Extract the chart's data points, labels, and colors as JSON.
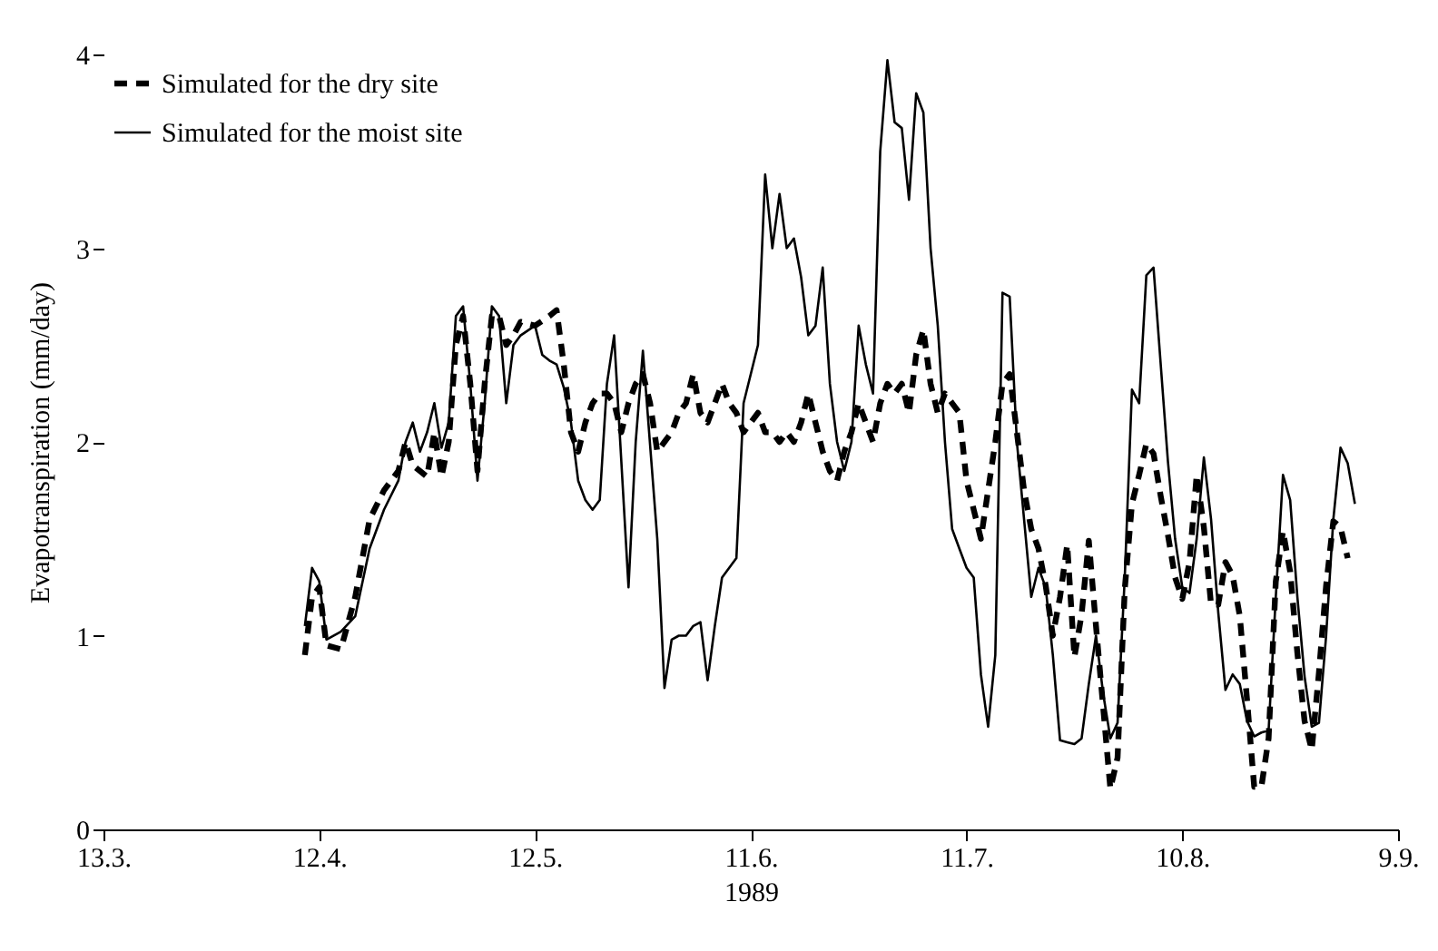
{
  "chart_data": {
    "type": "line",
    "xlabel": "1989",
    "ylabel": "Evapotranspiration (mm/day)",
    "xlim": [
      "1989-03-13",
      "1989-09-09"
    ],
    "xticks": [
      {
        "value": "1989-03-13",
        "label": "13.3."
      },
      {
        "value": "1989-04-12",
        "label": "12.4."
      },
      {
        "value": "1989-05-12",
        "label": "12.5."
      },
      {
        "value": "1989-06-11",
        "label": "11.6."
      },
      {
        "value": "1989-07-11",
        "label": "11.7."
      },
      {
        "value": "1989-08-10",
        "label": "10.8."
      },
      {
        "value": "1989-09-09",
        "label": "9.9."
      }
    ],
    "ylim": [
      0,
      4
    ],
    "yticks": [
      0,
      1,
      2,
      3,
      4
    ],
    "legend": "top left",
    "series": [
      {
        "name": "Simulated for the dry site",
        "color": "#000000",
        "line_style": "dashed",
        "x": [
          "1989-04-10",
          "1989-04-11",
          "1989-04-12",
          "1989-04-13",
          "1989-04-15",
          "1989-04-17",
          "1989-04-19",
          "1989-04-21",
          "1989-04-23",
          "1989-04-24",
          "1989-04-25",
          "1989-04-26",
          "1989-04-27",
          "1989-04-28",
          "1989-04-29",
          "1989-04-30",
          "1989-05-01",
          "1989-05-02",
          "1989-05-03",
          "1989-05-04",
          "1989-05-05",
          "1989-05-06",
          "1989-05-07",
          "1989-05-08",
          "1989-05-09",
          "1989-05-10",
          "1989-05-12",
          "1989-05-14",
          "1989-05-15",
          "1989-05-16",
          "1989-05-17",
          "1989-05-18",
          "1989-05-19",
          "1989-05-20",
          "1989-05-21",
          "1989-05-22",
          "1989-05-23",
          "1989-05-24",
          "1989-05-25",
          "1989-05-26",
          "1989-05-27",
          "1989-05-28",
          "1989-05-29",
          "1989-05-30",
          "1989-05-31",
          "1989-06-01",
          "1989-06-02",
          "1989-06-03",
          "1989-06-04",
          "1989-06-05",
          "1989-06-06",
          "1989-06-07",
          "1989-06-08",
          "1989-06-09",
          "1989-06-10",
          "1989-06-11",
          "1989-06-12",
          "1989-06-13",
          "1989-06-14",
          "1989-06-15",
          "1989-06-16",
          "1989-06-17",
          "1989-06-18",
          "1989-06-19",
          "1989-06-20",
          "1989-06-21",
          "1989-06-22",
          "1989-06-23",
          "1989-06-24",
          "1989-06-25",
          "1989-06-26",
          "1989-06-27",
          "1989-06-28",
          "1989-06-29",
          "1989-06-30",
          "1989-07-01",
          "1989-07-02",
          "1989-07-03",
          "1989-07-04",
          "1989-07-05",
          "1989-07-06",
          "1989-07-07",
          "1989-07-08",
          "1989-07-09",
          "1989-07-10",
          "1989-07-11",
          "1989-07-12",
          "1989-07-13",
          "1989-07-14",
          "1989-07-15",
          "1989-07-16",
          "1989-07-17",
          "1989-07-18",
          "1989-07-19",
          "1989-07-20",
          "1989-07-21",
          "1989-07-22",
          "1989-07-23",
          "1989-07-24",
          "1989-07-25",
          "1989-07-26",
          "1989-07-27",
          "1989-07-28",
          "1989-07-29",
          "1989-07-30",
          "1989-07-31",
          "1989-08-01",
          "1989-08-02",
          "1989-08-03",
          "1989-08-04",
          "1989-08-05",
          "1989-08-06",
          "1989-08-07",
          "1989-08-08",
          "1989-08-09",
          "1989-08-10",
          "1989-08-11",
          "1989-08-12",
          "1989-08-13",
          "1989-08-14",
          "1989-08-15",
          "1989-08-16",
          "1989-08-17",
          "1989-08-18",
          "1989-08-19",
          "1989-08-20",
          "1989-08-21",
          "1989-08-22",
          "1989-08-23",
          "1989-08-24",
          "1989-08-25",
          "1989-08-26",
          "1989-08-27",
          "1989-08-28",
          "1989-08-29",
          "1989-08-30",
          "1989-08-31",
          "1989-09-01",
          "1989-09-02"
        ],
        "values": [
          0.9,
          1.2,
          1.25,
          0.95,
          0.93,
          1.2,
          1.6,
          1.75,
          1.85,
          2.0,
          1.88,
          1.85,
          1.82,
          2.05,
          1.82,
          2.0,
          2.5,
          2.65,
          2.3,
          1.85,
          2.3,
          2.65,
          2.65,
          2.5,
          2.55,
          2.62,
          2.6,
          2.65,
          2.68,
          2.4,
          2.05,
          1.95,
          2.1,
          2.2,
          2.25,
          2.25,
          2.2,
          2.05,
          2.2,
          2.3,
          2.35,
          2.2,
          1.95,
          2.0,
          2.05,
          2.15,
          2.2,
          2.35,
          2.15,
          2.1,
          2.2,
          2.3,
          2.2,
          2.15,
          2.05,
          2.1,
          2.15,
          2.05,
          2.05,
          2.0,
          2.05,
          2.0,
          2.1,
          2.25,
          2.1,
          1.95,
          1.85,
          1.8,
          1.95,
          2.05,
          2.2,
          2.1,
          2.0,
          2.2,
          2.3,
          2.25,
          2.3,
          2.15,
          2.45,
          2.58,
          2.3,
          2.15,
          2.25,
          2.2,
          2.15,
          1.8,
          1.65,
          1.5,
          1.75,
          2.0,
          2.3,
          2.35,
          2.05,
          1.75,
          1.55,
          1.45,
          1.26,
          1.0,
          1.2,
          1.47,
          0.89,
          1.11,
          1.49,
          1.05,
          0.63,
          0.21,
          0.37,
          1.24,
          1.68,
          1.83,
          1.99,
          1.94,
          1.72,
          1.52,
          1.3,
          1.19,
          1.38,
          1.83,
          1.56,
          1.16,
          1.16,
          1.38,
          1.31,
          1.1,
          0.67,
          0.22,
          0.22,
          0.47,
          1.28,
          1.54,
          1.33,
          0.91,
          0.56,
          0.41,
          0.81,
          1.26,
          1.59,
          1.56,
          1.4
        ]
      },
      {
        "name": "Simulated for the moist site",
        "color": "#000000",
        "line_style": "solid",
        "x": [
          "1989-04-10",
          "1989-04-11",
          "1989-04-12",
          "1989-04-13",
          "1989-04-15",
          "1989-04-17",
          "1989-04-19",
          "1989-04-21",
          "1989-04-23",
          "1989-04-24",
          "1989-04-25",
          "1989-04-26",
          "1989-04-27",
          "1989-04-28",
          "1989-04-29",
          "1989-04-30",
          "1989-05-01",
          "1989-05-02",
          "1989-05-03",
          "1989-05-04",
          "1989-05-05",
          "1989-05-06",
          "1989-05-07",
          "1989-05-08",
          "1989-05-09",
          "1989-05-10",
          "1989-05-12",
          "1989-05-13",
          "1989-05-14",
          "1989-05-15",
          "1989-05-16",
          "1989-05-17",
          "1989-05-18",
          "1989-05-19",
          "1989-05-20",
          "1989-05-21",
          "1989-05-22",
          "1989-05-23",
          "1989-05-24",
          "1989-05-25",
          "1989-05-26",
          "1989-05-27",
          "1989-05-29",
          "1989-05-30",
          "1989-05-31",
          "1989-06-01",
          "1989-06-02",
          "1989-06-03",
          "1989-06-04",
          "1989-06-05",
          "1989-06-06",
          "1989-06-07",
          "1989-06-08",
          "1989-06-09",
          "1989-06-10",
          "1989-06-11",
          "1989-06-12",
          "1989-06-13",
          "1989-06-14",
          "1989-06-15",
          "1989-06-16",
          "1989-06-17",
          "1989-06-18",
          "1989-06-19",
          "1989-06-20",
          "1989-06-21",
          "1989-06-22",
          "1989-06-23",
          "1989-06-24",
          "1989-06-25",
          "1989-06-26",
          "1989-06-27",
          "1989-06-28",
          "1989-06-29",
          "1989-06-30",
          "1989-07-01",
          "1989-07-02",
          "1989-07-03",
          "1989-07-04",
          "1989-07-05",
          "1989-07-06",
          "1989-07-07",
          "1989-07-08",
          "1989-07-09",
          "1989-07-10",
          "1989-07-11",
          "1989-07-12",
          "1989-07-13",
          "1989-07-14",
          "1989-07-15",
          "1989-07-16",
          "1989-07-17",
          "1989-07-18",
          "1989-07-19",
          "1989-07-20",
          "1989-07-21",
          "1989-07-22",
          "1989-07-23",
          "1989-07-24",
          "1989-07-25",
          "1989-07-26",
          "1989-07-27",
          "1989-07-28",
          "1989-07-29",
          "1989-07-30",
          "1989-07-31",
          "1989-08-01",
          "1989-08-02",
          "1989-08-03",
          "1989-08-04",
          "1989-08-05",
          "1989-08-06",
          "1989-08-07",
          "1989-08-08",
          "1989-08-09",
          "1989-08-10",
          "1989-08-11",
          "1989-08-12",
          "1989-08-13",
          "1989-08-14",
          "1989-08-15",
          "1989-08-16",
          "1989-08-17",
          "1989-08-18",
          "1989-08-19",
          "1989-08-20",
          "1989-08-21",
          "1989-08-22",
          "1989-08-23",
          "1989-08-24",
          "1989-08-25",
          "1989-08-26",
          "1989-08-27",
          "1989-08-28",
          "1989-08-29",
          "1989-08-30",
          "1989-08-31",
          "1989-09-01",
          "1989-09-02",
          "1989-09-03"
        ],
        "values": [
          1.05,
          1.35,
          1.28,
          0.98,
          1.02,
          1.1,
          1.45,
          1.65,
          1.8,
          2.0,
          2.1,
          1.95,
          2.05,
          2.2,
          1.97,
          2.1,
          2.65,
          2.7,
          2.3,
          1.8,
          2.2,
          2.7,
          2.65,
          2.2,
          2.5,
          2.55,
          2.6,
          2.45,
          2.42,
          2.4,
          2.28,
          2.1,
          1.8,
          1.7,
          1.65,
          1.7,
          2.3,
          2.55,
          1.9,
          1.25,
          2.0,
          2.47,
          1.5,
          0.73,
          0.98,
          1.0,
          1.0,
          1.05,
          1.07,
          0.77,
          1.05,
          1.3,
          1.35,
          1.4,
          2.2,
          2.35,
          2.5,
          3.38,
          3.0,
          3.28,
          3.0,
          3.05,
          2.85,
          2.55,
          2.6,
          2.9,
          2.3,
          2.0,
          1.85,
          2.0,
          2.6,
          2.4,
          2.25,
          3.5,
          3.97,
          3.65,
          3.62,
          3.25,
          3.8,
          3.7,
          3.0,
          2.6,
          2.0,
          1.55,
          1.45,
          1.35,
          1.3,
          0.8,
          0.53,
          0.9,
          2.77,
          2.75,
          2.0,
          1.6,
          1.2,
          1.35,
          1.25,
          0.9,
          0.46,
          0.45,
          0.44,
          0.47,
          0.75,
          1.0,
          0.7,
          0.47,
          0.55,
          1.3,
          2.27,
          2.2,
          2.86,
          2.9,
          2.4,
          1.9,
          1.5,
          1.25,
          1.22,
          1.5,
          1.92,
          1.6,
          1.12,
          0.72,
          0.8,
          0.75,
          0.56,
          0.48,
          0.5,
          0.51,
          1.2,
          1.83,
          1.7,
          1.2,
          0.79,
          0.53,
          0.55,
          1.0,
          1.6,
          1.97,
          1.89,
          1.68
        ]
      }
    ]
  }
}
